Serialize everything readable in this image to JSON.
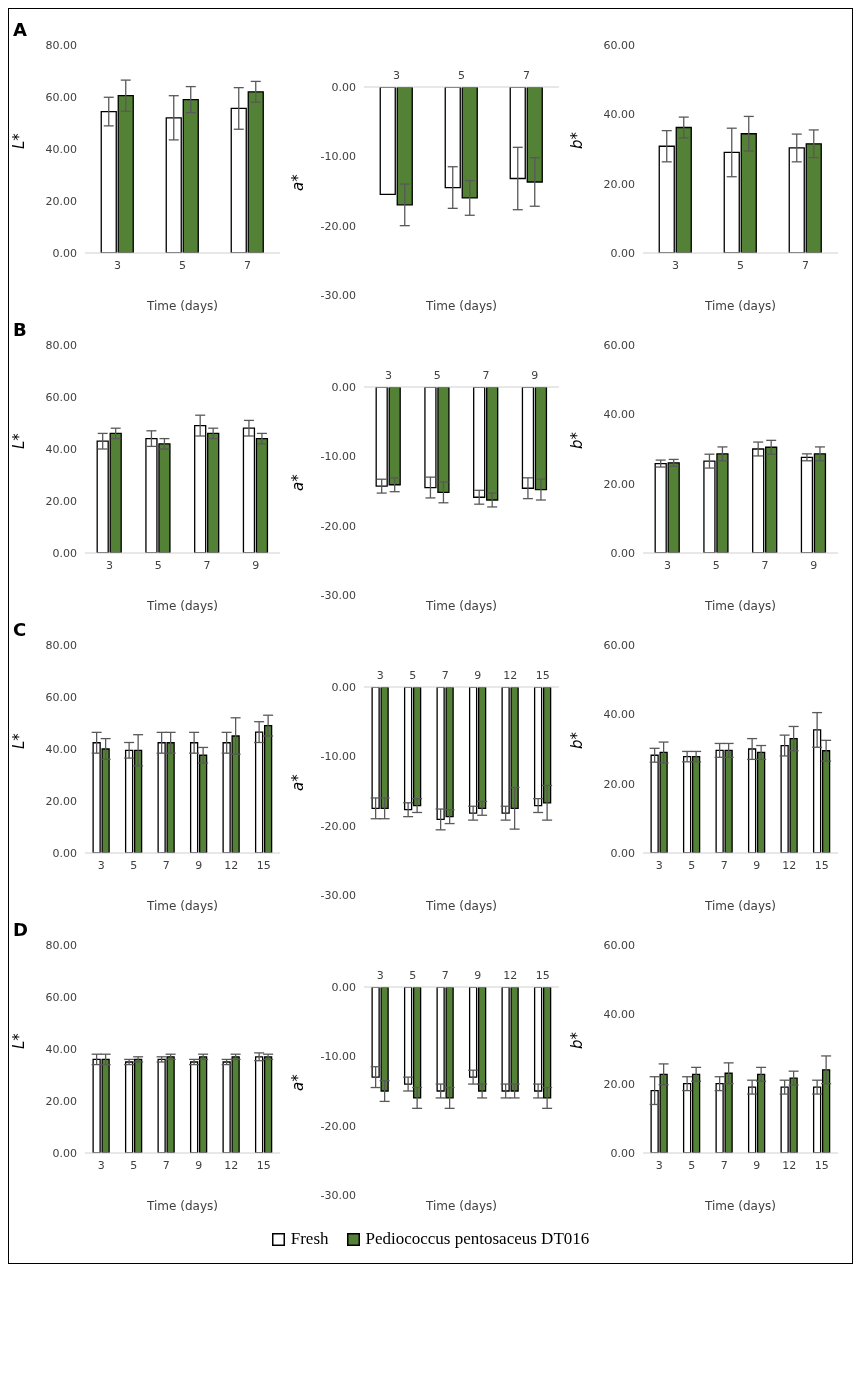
{
  "chart_data": [
    {
      "type": "bar",
      "title": "A",
      "ylabel": "L*",
      "xlabel": "Time (days)",
      "categories": [
        "3",
        "5",
        "7"
      ],
      "ylim": [
        0,
        80
      ],
      "yticks": [
        {
          "value": 0,
          "label": "0.00"
        },
        {
          "value": 20,
          "label": "20.00"
        },
        {
          "value": 40,
          "label": "40.00"
        },
        {
          "value": 60,
          "label": "60.00"
        },
        {
          "value": 80,
          "label": "80.00"
        }
      ],
      "series": [
        {
          "color": "#ffffff",
          "values": [
            54.4,
            52,
            55.6
          ],
          "errors": [
            5.5,
            8.5,
            8
          ]
        },
        {
          "color": "#538135",
          "values": [
            60.5,
            59,
            62
          ],
          "errors": [
            6,
            5,
            4
          ]
        }
      ]
    },
    {
      "type": "bar",
      "ylabel": "a*",
      "xlabel": "Time (days)",
      "categories": [
        "3",
        "5",
        "7"
      ],
      "ylim": [
        -30,
        0
      ],
      "yticks": [
        {
          "value": 0,
          "label": "0.00"
        },
        {
          "value": -10,
          "label": "-10.00"
        },
        {
          "value": -20,
          "label": "-20.00"
        },
        {
          "value": -30,
          "label": "-30.00"
        }
      ],
      "series": [
        {
          "color": "#ffffff",
          "values": [
            -15.5,
            -14.5,
            -13.2
          ],
          "errors": [
            null,
            3,
            4.5
          ]
        },
        {
          "color": "#538135",
          "values": [
            -17,
            -16,
            -13.7
          ],
          "errors": [
            3,
            2.5,
            3.5
          ]
        }
      ]
    },
    {
      "type": "bar",
      "ylabel": "b*",
      "xlabel": "Time (days)",
      "categories": [
        "3",
        "5",
        "7"
      ],
      "ylim": [
        0,
        60
      ],
      "yticks": [
        {
          "value": 0,
          "label": "0.00"
        },
        {
          "value": 20,
          "label": "20.00"
        },
        {
          "value": 40,
          "label": "40.00"
        },
        {
          "value": 60,
          "label": "60.00"
        }
      ],
      "series": [
        {
          "color": "#ffffff",
          "values": [
            30.8,
            29,
            30.3
          ],
          "errors": [
            4.5,
            7,
            4
          ]
        },
        {
          "color": "#538135",
          "values": [
            36.2,
            34.4,
            31.5
          ],
          "errors": [
            3,
            5,
            4
          ]
        }
      ]
    },
    {
      "type": "bar",
      "title": "B",
      "ylabel": "L*",
      "xlabel": "Time (days)",
      "categories": [
        "3",
        "5",
        "7",
        "9"
      ],
      "ylim": [
        0,
        80
      ],
      "yticks": [
        {
          "value": 0,
          "label": "0.00"
        },
        {
          "value": 20,
          "label": "20.00"
        },
        {
          "value": 40,
          "label": "40.00"
        },
        {
          "value": 60,
          "label": "60.00"
        },
        {
          "value": 80,
          "label": "80.00"
        }
      ],
      "series": [
        {
          "color": "#ffffff",
          "values": [
            43,
            44,
            49,
            48
          ],
          "errors": [
            3,
            3,
            4,
            3
          ]
        },
        {
          "color": "#538135",
          "values": [
            46,
            42,
            46,
            44
          ],
          "errors": [
            2,
            2,
            2,
            2
          ]
        }
      ]
    },
    {
      "type": "bar",
      "ylabel": "a*",
      "xlabel": "Time (days)",
      "categories": [
        "3",
        "5",
        "7",
        "9"
      ],
      "ylim": [
        -30,
        0
      ],
      "yticks": [
        {
          "value": 0,
          "label": "0.00"
        },
        {
          "value": -10,
          "label": "-10.00"
        },
        {
          "value": -20,
          "label": "-20.00"
        },
        {
          "value": -30,
          "label": "-30.00"
        }
      ],
      "series": [
        {
          "color": "#ffffff",
          "values": [
            -14.3,
            -14.5,
            -15.9,
            -14.6
          ],
          "errors": [
            1,
            1.5,
            1,
            1.5
          ]
        },
        {
          "color": "#538135",
          "values": [
            -14.1,
            -15.2,
            -16.3,
            -14.8
          ],
          "errors": [
            1,
            1.5,
            1,
            1.5
          ]
        }
      ]
    },
    {
      "type": "bar",
      "ylabel": "b*",
      "xlabel": "Time (days)",
      "categories": [
        "3",
        "5",
        "7",
        "9"
      ],
      "ylim": [
        0,
        60
      ],
      "yticks": [
        {
          "value": 0,
          "label": "0.00"
        },
        {
          "value": 20,
          "label": "20.00"
        },
        {
          "value": 40,
          "label": "40.00"
        },
        {
          "value": 60,
          "label": "60.00"
        }
      ],
      "series": [
        {
          "color": "#ffffff",
          "values": [
            25.8,
            26.5,
            30,
            27.6
          ],
          "errors": [
            1,
            2,
            2,
            1
          ]
        },
        {
          "color": "#538135",
          "values": [
            26,
            28.6,
            30.5,
            28.6
          ],
          "errors": [
            1,
            2,
            2,
            2
          ]
        }
      ]
    },
    {
      "type": "bar",
      "title": "C",
      "ylabel": "L*",
      "xlabel": "Time (days)",
      "categories": [
        "3",
        "5",
        "7",
        "9",
        "12",
        "15"
      ],
      "ylim": [
        0,
        80
      ],
      "yticks": [
        {
          "value": 0,
          "label": "0.00"
        },
        {
          "value": 20,
          "label": "20.00"
        },
        {
          "value": 40,
          "label": "40.00"
        },
        {
          "value": 60,
          "label": "60.00"
        },
        {
          "value": 80,
          "label": "80.00"
        }
      ],
      "series": [
        {
          "color": "#ffffff",
          "values": [
            42.4,
            39.5,
            42.4,
            42.4,
            42.4,
            46.5
          ],
          "errors": [
            4,
            3,
            4,
            4,
            4,
            4
          ]
        },
        {
          "color": "#538135",
          "values": [
            40,
            39.5,
            42.4,
            37.6,
            45,
            49
          ],
          "errors": [
            4,
            6,
            4,
            3,
            7,
            4
          ]
        }
      ]
    },
    {
      "type": "bar",
      "ylabel": "a*",
      "xlabel": "Time (days)",
      "categories": [
        "3",
        "5",
        "7",
        "9",
        "12",
        "15"
      ],
      "ylim": [
        -30,
        0
      ],
      "yticks": [
        {
          "value": 0,
          "label": "0.00"
        },
        {
          "value": -10,
          "label": "-10.00"
        },
        {
          "value": -20,
          "label": "-20.00"
        },
        {
          "value": -30,
          "label": "-30.00"
        }
      ],
      "series": [
        {
          "color": "#ffffff",
          "values": [
            -17.5,
            -17.7,
            -19.1,
            -18.2,
            -18.2,
            -17.1
          ],
          "errors": [
            1.5,
            1,
            1.5,
            1,
            1,
            1
          ]
        },
        {
          "color": "#538135",
          "values": [
            -17.5,
            -17.1,
            -18.7,
            -17.5,
            -17.5,
            -16.7
          ],
          "errors": [
            1.5,
            1,
            1,
            1,
            3,
            2.5
          ]
        }
      ]
    },
    {
      "type": "bar",
      "ylabel": "b*",
      "xlabel": "Time (days)",
      "categories": [
        "3",
        "5",
        "7",
        "9",
        "12",
        "15"
      ],
      "ylim": [
        0,
        60
      ],
      "yticks": [
        {
          "value": 0,
          "label": "0.00"
        },
        {
          "value": 20,
          "label": "20.00"
        },
        {
          "value": 40,
          "label": "40.00"
        },
        {
          "value": 60,
          "label": "60.00"
        }
      ],
      "series": [
        {
          "color": "#ffffff",
          "values": [
            28.2,
            27.8,
            29.6,
            30,
            31,
            35.5
          ],
          "errors": [
            2,
            1.5,
            2,
            3,
            3,
            5
          ]
        },
        {
          "color": "#538135",
          "values": [
            29,
            27.8,
            29.6,
            29,
            33,
            29.5
          ],
          "errors": [
            3,
            1.5,
            2,
            2,
            3.5,
            3
          ]
        }
      ]
    },
    {
      "type": "bar",
      "title": "D",
      "ylabel": "L*",
      "xlabel": "Time (days)",
      "categories": [
        "3",
        "5",
        "7",
        "9",
        "12",
        "15"
      ],
      "ylim": [
        0,
        80
      ],
      "yticks": [
        {
          "value": 0,
          "label": "0.00"
        },
        {
          "value": 20,
          "label": "20.00"
        },
        {
          "value": 40,
          "label": "40.00"
        },
        {
          "value": 60,
          "label": "60.00"
        },
        {
          "value": 80,
          "label": "80.00"
        }
      ],
      "series": [
        {
          "color": "#ffffff",
          "values": [
            36,
            35,
            36,
            35,
            35,
            37
          ],
          "errors": [
            2,
            1,
            1,
            1,
            1,
            1.5
          ]
        },
        {
          "color": "#538135",
          "values": [
            36,
            36,
            37,
            37,
            37,
            37
          ],
          "errors": [
            2,
            1,
            1,
            1,
            1,
            1
          ]
        }
      ]
    },
    {
      "type": "bar",
      "ylabel": "a*",
      "xlabel": "Time (days)",
      "categories": [
        "3",
        "5",
        "7",
        "9",
        "12",
        "15"
      ],
      "ylim": [
        -30,
        0
      ],
      "yticks": [
        {
          "value": 0,
          "label": "0.00"
        },
        {
          "value": -10,
          "label": "-10.00"
        },
        {
          "value": -20,
          "label": "-20.00"
        },
        {
          "value": -30,
          "label": "-30.00"
        }
      ],
      "series": [
        {
          "color": "#ffffff",
          "values": [
            -13,
            -14,
            -15,
            -13,
            -15,
            -15
          ],
          "errors": [
            1.5,
            1,
            1,
            1,
            1,
            1
          ]
        },
        {
          "color": "#538135",
          "values": [
            -15,
            -16,
            -16,
            -15,
            -15,
            -16
          ],
          "errors": [
            1.5,
            1.5,
            1.5,
            1,
            1,
            1.5
          ]
        }
      ]
    },
    {
      "type": "bar",
      "ylabel": "b*",
      "xlabel": "Time (days)",
      "categories": [
        "3",
        "5",
        "7",
        "9",
        "12",
        "15"
      ],
      "ylim": [
        0,
        60
      ],
      "yticks": [
        {
          "value": 0,
          "label": "0.00"
        },
        {
          "value": 20,
          "label": "20.00"
        },
        {
          "value": 40,
          "label": "40.00"
        },
        {
          "value": 60,
          "label": "60.00"
        }
      ],
      "legend": "bottom",
      "series": [
        {
          "name": "Fresh",
          "color": "#ffffff",
          "values": [
            18,
            20,
            20,
            19,
            19,
            19
          ],
          "errors": [
            4,
            2,
            2,
            2,
            2,
            2
          ]
        },
        {
          "name": "Pediococcus pentosaceus DT016",
          "color": "#538135",
          "values": [
            22.7,
            22.7,
            23,
            22.7,
            21.6,
            24
          ],
          "errors": [
            3,
            2,
            3,
            2,
            2,
            4
          ]
        }
      ]
    }
  ]
}
